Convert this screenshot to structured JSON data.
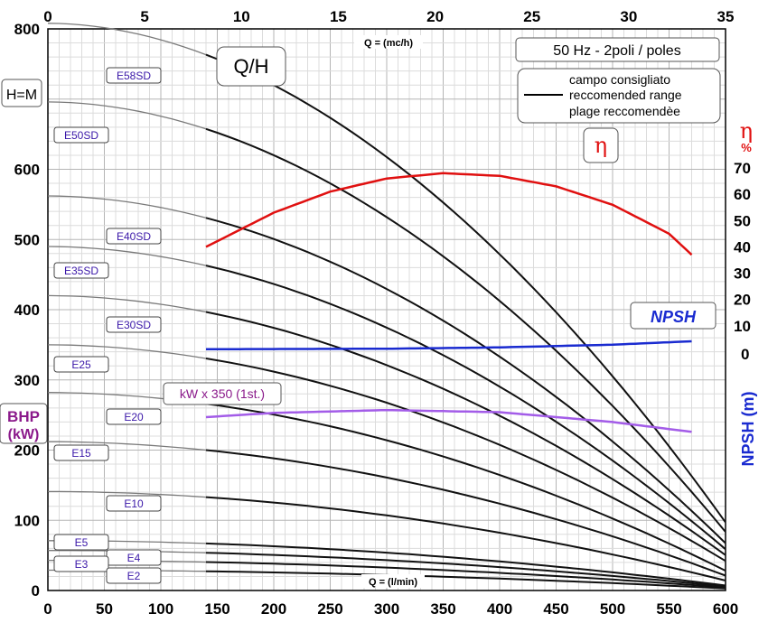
{
  "chart_data": {
    "type": "line",
    "x_top": {
      "label": "Q = (mc/h)",
      "range": [
        0,
        35
      ],
      "ticks": [
        "0",
        "5",
        "10",
        "15",
        "20",
        "25",
        "30",
        "35"
      ]
    },
    "x_bottom": {
      "label": "Q = (l/min)",
      "range": [
        0,
        600
      ],
      "ticks": [
        "0",
        "50",
        "100",
        "150",
        "200",
        "250",
        "300",
        "350",
        "400",
        "450",
        "500",
        "550",
        "600"
      ]
    },
    "y_left": {
      "label": "H=M",
      "range": [
        0,
        800
      ],
      "ticks": [
        "0",
        "100",
        "200",
        "300",
        "400",
        "500",
        "600",
        "700",
        "800"
      ]
    },
    "y_eta": {
      "label": "η",
      "unit": "%",
      "ticks": [
        "10",
        "20",
        "30",
        "40",
        "50",
        "60",
        "70"
      ]
    },
    "y_npsh": {
      "label": "NPSH (m)",
      "ticks": [
        "0"
      ]
    },
    "grid": true,
    "header_box": "50 Hz - 2poli / poles",
    "qh_badge": "Q/H",
    "eta_badge": "η",
    "legend": [
      "campo consigliato",
      "reccomended range",
      "plage reccomendèe"
    ],
    "npsh_label": "NPSH",
    "bhp_label": [
      "BHP",
      "(kW)"
    ],
    "power_label": "kW x 350 (1st.)",
    "colors": {
      "qh": "#111111",
      "eta": "#e01010",
      "npsh": "#1a2bd0",
      "power": "#a35ce8",
      "model_text": "#3a17a8"
    },
    "curves": [
      {
        "name": "E58SD",
        "h0": 808
      },
      {
        "name": "E50SD",
        "h0": 696
      },
      {
        "name": "E40SD",
        "h0": 562
      },
      {
        "name": "E35SD",
        "h0": 490
      },
      {
        "name": "E30SD",
        "h0": 420
      },
      {
        "name": "E25",
        "h0": 350
      },
      {
        "name": "E20",
        "h0": 282
      },
      {
        "name": "E15",
        "h0": 212
      },
      {
        "name": "E10",
        "h0": 141
      },
      {
        "name": "E5",
        "h0": 71
      },
      {
        "name": "E4",
        "h0": 57
      },
      {
        "name": "E3",
        "h0": 43
      },
      {
        "name": "E2",
        "h0": 29
      }
    ],
    "efficiency_curve": {
      "q_lmin": [
        140,
        200,
        250,
        300,
        350,
        400,
        450,
        500,
        550,
        570
      ],
      "eta": [
        40,
        53,
        61,
        66,
        68,
        67,
        63,
        56,
        45,
        37
      ]
    },
    "npsh_curve": {
      "q_lmin": [
        140,
        300,
        400,
        500,
        570
      ],
      "npsh": [
        0.5,
        0.7,
        1.3,
        2.5,
        4.0
      ]
    },
    "power_curve": {
      "q_lmin": [
        140,
        200,
        300,
        400,
        500,
        570
      ],
      "bhp_kw": [
        247,
        253,
        257,
        254,
        240,
        226
      ]
    }
  }
}
